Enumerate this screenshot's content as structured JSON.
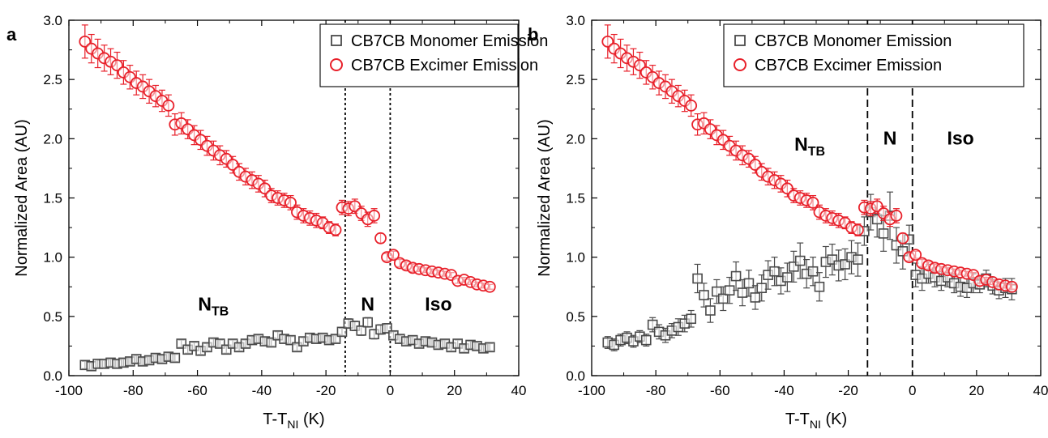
{
  "chart_data": [
    {
      "type": "scatter",
      "panel_label": "a",
      "xlabel_main": "T-T",
      "xlabel_sub": "NI",
      "xlabel_tail": " (K)",
      "ylabel": "Normalized Area (AU)",
      "xlim": [
        -100,
        40
      ],
      "ylim": [
        0,
        3.0
      ],
      "x_ticks": [
        "-100",
        "-80",
        "-60",
        "-40",
        "-20",
        "0",
        "20",
        "40"
      ],
      "y_ticks": [
        "0.0",
        "0.5",
        "1.0",
        "1.5",
        "2.0",
        "2.5",
        "3.0"
      ],
      "legend_position": "top-right",
      "vlines": [
        -14,
        0
      ],
      "vline_style": "dotted",
      "phase_labels": [
        {
          "main": "N",
          "sub": "TB",
          "x": -55,
          "y": 0.55
        },
        {
          "main": "N",
          "sub": "",
          "x": -7,
          "y": 0.55
        },
        {
          "main": "Iso",
          "sub": "",
          "x": 15,
          "y": 0.55
        }
      ],
      "series": [
        {
          "name": "CB7CB Monomer Emission",
          "marker": "square",
          "color": "#4a4a4a",
          "x": [
            -95,
            -93,
            -91,
            -89,
            -87,
            -85,
            -83,
            -81,
            -79,
            -77,
            -75,
            -73,
            -71,
            -69,
            -67,
            -65,
            -63,
            -61,
            -59,
            -57,
            -55,
            -53,
            -51,
            -49,
            -47,
            -45,
            -43,
            -41,
            -39,
            -37,
            -35,
            -33,
            -31,
            -29,
            -27,
            -25,
            -23,
            -21,
            -19,
            -17,
            -15,
            -13,
            -11,
            -9,
            -7,
            -5,
            -3,
            -1,
            1,
            3,
            5,
            7,
            9,
            11,
            13,
            15,
            17,
            19,
            21,
            23,
            25,
            27,
            29,
            31
          ],
          "y": [
            0.09,
            0.08,
            0.1,
            0.1,
            0.11,
            0.1,
            0.11,
            0.12,
            0.14,
            0.12,
            0.13,
            0.15,
            0.14,
            0.16,
            0.15,
            0.27,
            0.22,
            0.25,
            0.21,
            0.24,
            0.28,
            0.27,
            0.22,
            0.27,
            0.24,
            0.27,
            0.3,
            0.31,
            0.29,
            0.28,
            0.34,
            0.31,
            0.3,
            0.24,
            0.29,
            0.32,
            0.31,
            0.32,
            0.3,
            0.31,
            0.37,
            0.44,
            0.42,
            0.38,
            0.45,
            0.35,
            0.39,
            0.4,
            0.34,
            0.31,
            0.29,
            0.3,
            0.27,
            0.29,
            0.28,
            0.26,
            0.27,
            0.24,
            0.27,
            0.23,
            0.26,
            0.25,
            0.23,
            0.24
          ],
          "err": [
            0.03,
            0.03,
            0.03,
            0.03,
            0.03,
            0.03,
            0.03,
            0.03,
            0.03,
            0.03,
            0.03,
            0.03,
            0.03,
            0.03,
            0.03,
            0.03,
            0.03,
            0.03,
            0.03,
            0.03,
            0.03,
            0.03,
            0.03,
            0.03,
            0.03,
            0.03,
            0.03,
            0.03,
            0.03,
            0.03,
            0.03,
            0.03,
            0.03,
            0.03,
            0.03,
            0.03,
            0.03,
            0.03,
            0.03,
            0.03,
            0.03,
            0.04,
            0.04,
            0.04,
            0.04,
            0.04,
            0.04,
            0.04,
            0.03,
            0.03,
            0.03,
            0.03,
            0.03,
            0.03,
            0.03,
            0.03,
            0.03,
            0.03,
            0.03,
            0.03,
            0.03,
            0.03,
            0.03,
            0.03
          ]
        },
        {
          "name": "CB7CB Excimer Emission",
          "marker": "circle",
          "color": "#e8202a",
          "x": [
            -95,
            -93,
            -91,
            -89,
            -87,
            -85,
            -83,
            -81,
            -79,
            -77,
            -75,
            -73,
            -71,
            -69,
            -67,
            -65,
            -63,
            -61,
            -59,
            -57,
            -55,
            -53,
            -51,
            -49,
            -47,
            -45,
            -43,
            -41,
            -39,
            -37,
            -35,
            -33,
            -31,
            -29,
            -27,
            -25,
            -23,
            -21,
            -19,
            -17,
            -15,
            -13,
            -11,
            -9,
            -7,
            -5,
            -3,
            -1,
            1,
            3,
            5,
            7,
            9,
            11,
            13,
            15,
            17,
            19,
            21,
            23,
            25,
            27,
            29,
            31
          ],
          "y": [
            2.82,
            2.76,
            2.72,
            2.68,
            2.65,
            2.62,
            2.56,
            2.52,
            2.47,
            2.44,
            2.4,
            2.36,
            2.32,
            2.28,
            2.12,
            2.13,
            2.08,
            2.03,
            1.99,
            1.94,
            1.9,
            1.86,
            1.83,
            1.78,
            1.72,
            1.68,
            1.65,
            1.62,
            1.58,
            1.52,
            1.5,
            1.48,
            1.46,
            1.38,
            1.35,
            1.33,
            1.31,
            1.29,
            1.25,
            1.23,
            1.42,
            1.41,
            1.43,
            1.37,
            1.32,
            1.35,
            1.16,
            1.0,
            1.02,
            0.95,
            0.93,
            0.91,
            0.9,
            0.89,
            0.88,
            0.87,
            0.86,
            0.85,
            0.8,
            0.81,
            0.79,
            0.77,
            0.76,
            0.75
          ],
          "err": [
            0.14,
            0.12,
            0.12,
            0.11,
            0.11,
            0.11,
            0.1,
            0.1,
            0.1,
            0.1,
            0.1,
            0.09,
            0.09,
            0.09,
            0.09,
            0.09,
            0.08,
            0.08,
            0.08,
            0.08,
            0.08,
            0.08,
            0.07,
            0.07,
            0.07,
            0.07,
            0.07,
            0.07,
            0.07,
            0.06,
            0.06,
            0.06,
            0.06,
            0.06,
            0.06,
            0.06,
            0.06,
            0.05,
            0.05,
            0.05,
            0.06,
            0.06,
            0.06,
            0.06,
            0.06,
            0.06,
            0.04,
            0.03,
            0.03,
            0.03,
            0.03,
            0.03,
            0.02,
            0.02,
            0.02,
            0.02,
            0.02,
            0.02,
            0.02,
            0.02,
            0.02,
            0.02,
            0.02,
            0.02
          ]
        }
      ]
    },
    {
      "type": "scatter",
      "panel_label": "b",
      "xlabel_main": "T-T",
      "xlabel_sub": "NI",
      "xlabel_tail": " (K)",
      "ylabel": "Normalized Area (AU)",
      "xlim": [
        -100,
        40
      ],
      "ylim": [
        0,
        3.0
      ],
      "x_ticks": [
        "-100",
        "-80",
        "-60",
        "-40",
        "-20",
        "0",
        "20",
        "40"
      ],
      "y_ticks": [
        "0.0",
        "0.5",
        "1.0",
        "1.5",
        "2.0",
        "2.5",
        "3.0"
      ],
      "legend_position": "top-right",
      "vlines": [
        -14,
        0
      ],
      "vline_style": "dashed",
      "phase_labels": [
        {
          "main": "N",
          "sub": "TB",
          "x": -32,
          "y": 1.9
        },
        {
          "main": "N",
          "sub": "",
          "x": -7,
          "y": 1.95
        },
        {
          "main": "Iso",
          "sub": "",
          "x": 15,
          "y": 1.95
        }
      ],
      "series": [
        {
          "name": "CB7CB Monomer Emission",
          "marker": "square",
          "color": "#4a4a4a",
          "x": [
            -95,
            -93,
            -91,
            -89,
            -87,
            -85,
            -83,
            -81,
            -79,
            -77,
            -75,
            -73,
            -71,
            -69,
            -67,
            -65,
            -63,
            -61,
            -59,
            -57,
            -55,
            -53,
            -51,
            -49,
            -47,
            -45,
            -43,
            -41,
            -39,
            -37,
            -35,
            -33,
            -31,
            -29,
            -27,
            -25,
            -23,
            -21,
            -19,
            -17,
            -15,
            -13,
            -11,
            -9,
            -7,
            -5,
            -3,
            -1,
            1,
            3,
            5,
            7,
            9,
            11,
            13,
            15,
            17,
            19,
            21,
            23,
            25,
            27,
            29,
            31
          ],
          "y": [
            0.28,
            0.26,
            0.3,
            0.32,
            0.29,
            0.33,
            0.3,
            0.43,
            0.37,
            0.34,
            0.38,
            0.41,
            0.44,
            0.48,
            0.82,
            0.68,
            0.55,
            0.71,
            0.65,
            0.72,
            0.84,
            0.7,
            0.78,
            0.66,
            0.74,
            0.85,
            0.88,
            0.8,
            0.83,
            0.92,
            0.97,
            0.86,
            0.88,
            0.75,
            0.96,
            0.98,
            0.93,
            0.94,
            1.0,
            0.98,
            1.22,
            1.38,
            1.32,
            1.2,
            1.35,
            1.1,
            1.05,
            1.15,
            0.85,
            0.82,
            0.86,
            0.83,
            0.8,
            0.83,
            0.78,
            0.75,
            0.74,
            0.78,
            0.77,
            0.82,
            0.76,
            0.72,
            0.74,
            0.73
          ],
          "err": [
            0.05,
            0.05,
            0.05,
            0.05,
            0.05,
            0.05,
            0.05,
            0.06,
            0.06,
            0.06,
            0.06,
            0.07,
            0.07,
            0.07,
            0.12,
            0.1,
            0.1,
            0.1,
            0.1,
            0.11,
            0.12,
            0.11,
            0.11,
            0.1,
            0.11,
            0.12,
            0.12,
            0.11,
            0.12,
            0.13,
            0.15,
            0.12,
            0.12,
            0.12,
            0.13,
            0.13,
            0.13,
            0.13,
            0.14,
            0.14,
            0.12,
            0.15,
            0.15,
            0.15,
            0.2,
            0.15,
            0.15,
            0.12,
            0.1,
            0.1,
            0.08,
            0.08,
            0.08,
            0.08,
            0.08,
            0.08,
            0.08,
            0.08,
            0.07,
            0.07,
            0.07,
            0.07,
            0.08,
            0.09
          ]
        },
        {
          "name": "CB7CB Excimer Emission",
          "marker": "circle",
          "color": "#e8202a",
          "x": [
            -95,
            -93,
            -91,
            -89,
            -87,
            -85,
            -83,
            -81,
            -79,
            -77,
            -75,
            -73,
            -71,
            -69,
            -67,
            -65,
            -63,
            -61,
            -59,
            -57,
            -55,
            -53,
            -51,
            -49,
            -47,
            -45,
            -43,
            -41,
            -39,
            -37,
            -35,
            -33,
            -31,
            -29,
            -27,
            -25,
            -23,
            -21,
            -19,
            -17,
            -15,
            -13,
            -11,
            -9,
            -7,
            -5,
            -3,
            -1,
            1,
            3,
            5,
            7,
            9,
            11,
            13,
            15,
            17,
            19,
            21,
            23,
            25,
            27,
            29,
            31
          ],
          "y": [
            2.82,
            2.76,
            2.72,
            2.68,
            2.65,
            2.62,
            2.56,
            2.52,
            2.47,
            2.44,
            2.4,
            2.36,
            2.32,
            2.28,
            2.12,
            2.13,
            2.08,
            2.03,
            1.99,
            1.94,
            1.9,
            1.86,
            1.83,
            1.78,
            1.72,
            1.68,
            1.65,
            1.62,
            1.58,
            1.52,
            1.5,
            1.48,
            1.46,
            1.38,
            1.35,
            1.33,
            1.31,
            1.29,
            1.25,
            1.23,
            1.42,
            1.41,
            1.43,
            1.37,
            1.32,
            1.35,
            1.16,
            1.0,
            1.02,
            0.95,
            0.93,
            0.91,
            0.9,
            0.89,
            0.88,
            0.87,
            0.86,
            0.85,
            0.8,
            0.81,
            0.79,
            0.77,
            0.76,
            0.75
          ],
          "err": [
            0.14,
            0.12,
            0.12,
            0.11,
            0.11,
            0.11,
            0.1,
            0.1,
            0.1,
            0.1,
            0.1,
            0.09,
            0.09,
            0.09,
            0.09,
            0.09,
            0.08,
            0.08,
            0.08,
            0.08,
            0.08,
            0.08,
            0.07,
            0.07,
            0.07,
            0.07,
            0.07,
            0.07,
            0.07,
            0.06,
            0.06,
            0.06,
            0.06,
            0.06,
            0.06,
            0.06,
            0.06,
            0.05,
            0.05,
            0.05,
            0.06,
            0.06,
            0.06,
            0.06,
            0.06,
            0.06,
            0.04,
            0.03,
            0.03,
            0.03,
            0.03,
            0.03,
            0.02,
            0.02,
            0.02,
            0.02,
            0.02,
            0.02,
            0.02,
            0.02,
            0.02,
            0.02,
            0.02,
            0.02
          ]
        }
      ]
    }
  ]
}
